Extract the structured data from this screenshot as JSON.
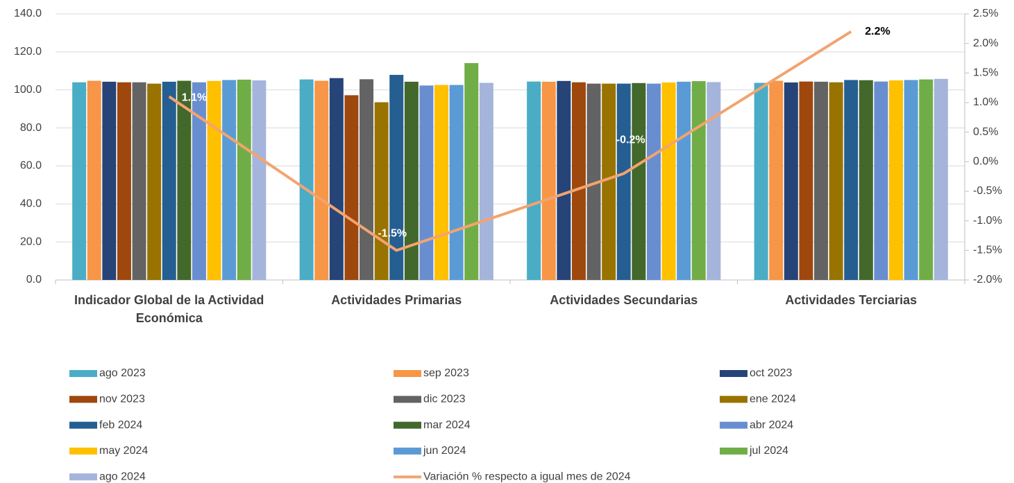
{
  "chart_data": {
    "type": "bar",
    "categories": [
      "Indicador Global de la Actividad Económica",
      "Actividades Primarias",
      "Actividades Secundarias",
      "Actividades Terciarias"
    ],
    "series": [
      {
        "name": "ago 2023",
        "color": "#4bacc6",
        "values": [
          104.0,
          105.5,
          104.4,
          103.7
        ]
      },
      {
        "name": "sep 2023",
        "color": "#f79646",
        "values": [
          104.8,
          104.8,
          104.3,
          104.8
        ]
      },
      {
        "name": "oct 2023",
        "color": "#264478",
        "values": [
          104.3,
          106.2,
          104.7,
          103.9
        ]
      },
      {
        "name": "nov 2023",
        "color": "#9e480e",
        "values": [
          104.0,
          97.2,
          104.0,
          104.4
        ]
      },
      {
        "name": "dic 2023",
        "color": "#636363",
        "values": [
          104.0,
          105.6,
          103.3,
          104.3
        ]
      },
      {
        "name": "ene 2024",
        "color": "#997300",
        "values": [
          103.3,
          93.5,
          103.3,
          104.0
        ]
      },
      {
        "name": "feb 2024",
        "color": "#255e91",
        "values": [
          104.3,
          107.9,
          103.3,
          105.2
        ]
      },
      {
        "name": "mar 2024",
        "color": "#43682b",
        "values": [
          104.8,
          104.3,
          103.6,
          105.1
        ]
      },
      {
        "name": "abr 2024",
        "color": "#698ed0",
        "values": [
          104.0,
          102.3,
          103.3,
          104.4
        ]
      },
      {
        "name": "may 2024",
        "color": "#ffc000",
        "values": [
          104.7,
          102.6,
          103.9,
          105.0
        ]
      },
      {
        "name": "jun 2024",
        "color": "#5b9bd5",
        "values": [
          105.2,
          102.6,
          104.3,
          105.2
        ]
      },
      {
        "name": "jul 2024",
        "color": "#70ad47",
        "values": [
          105.4,
          114.1,
          104.6,
          105.5
        ]
      },
      {
        "name": "ago 2024",
        "color": "#a5b4db",
        "values": [
          105.0,
          103.7,
          104.1,
          105.8
        ]
      },
      {
        "name": "Variación % respecto a igual mes de 2024",
        "color": "#f2a46f",
        "axis": "y2",
        "type": "line",
        "values": [
          1.1,
          -1.5,
          -0.2,
          2.2
        ],
        "value_labels": [
          "1.1%",
          "-1.5%",
          "-0.2%",
          "2.2%"
        ],
        "value_label_colors": [
          "#ffffff",
          "#ffffff",
          "#ffffff",
          "#000000"
        ]
      }
    ],
    "ylim": [
      0,
      140
    ],
    "yticks": [
      {
        "value": 0,
        "label": "0.0"
      },
      {
        "value": 20,
        "label": "20.0"
      },
      {
        "value": 40,
        "label": "40.0"
      },
      {
        "value": 60,
        "label": "60.0"
      },
      {
        "value": 80,
        "label": "80.0"
      },
      {
        "value": 100,
        "label": "100.0"
      },
      {
        "value": 120,
        "label": "120.0"
      },
      {
        "value": 140,
        "label": "140.0"
      }
    ],
    "y2lim": [
      -2.0,
      2.5
    ],
    "y2ticks": [
      {
        "value": -2.0,
        "label": "-2.0%"
      },
      {
        "value": -1.5,
        "label": "-1.5%"
      },
      {
        "value": -1.0,
        "label": "-1.0%"
      },
      {
        "value": -0.5,
        "label": "-0.5%"
      },
      {
        "value": 0.0,
        "label": "0.0%"
      },
      {
        "value": 0.5,
        "label": "0.5%"
      },
      {
        "value": 1.0,
        "label": "1.0%"
      },
      {
        "value": 1.5,
        "label": "1.5%"
      },
      {
        "value": 2.0,
        "label": "2.0%"
      },
      {
        "value": 2.5,
        "label": "2.5%"
      }
    ],
    "grid": true,
    "legend": "bottom"
  }
}
